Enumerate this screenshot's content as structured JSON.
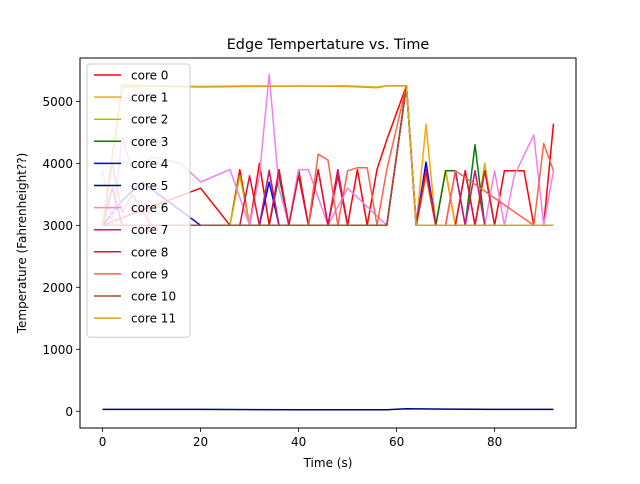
{
  "chart_data": {
    "type": "line",
    "title": "Edge Tempertature vs. Time",
    "xlabel": "Time (s)",
    "ylabel": "Temperature (Fahrenheight??)",
    "xlim": [
      -4.6,
      96.6
    ],
    "ylim": [
      -270,
      5700
    ],
    "xticks": [
      0,
      20,
      40,
      60,
      80
    ],
    "yticks": [
      0,
      1000,
      2000,
      3000,
      4000,
      5000
    ],
    "grid": false,
    "legend_position": "upper left",
    "series": [
      {
        "name": "core 0",
        "color": "#ff0000",
        "x": [
          0,
          10,
          20,
          26,
          28,
          30,
          32,
          34,
          36,
          38,
          40,
          42,
          44,
          46,
          48,
          50,
          52,
          54,
          56,
          58,
          62,
          64,
          66,
          68,
          70,
          72,
          74,
          76,
          78,
          80,
          82,
          84,
          86,
          88,
          90,
          92
        ],
        "y": [
          3000,
          3300,
          3600,
          3000,
          3900,
          3000,
          4000,
          3000,
          3900,
          3000,
          3900,
          3000,
          3900,
          3000,
          3900,
          3000,
          3900,
          3000,
          3900,
          4380,
          5250,
          3000,
          3800,
          3000,
          3880,
          3000,
          3880,
          3000,
          3880,
          3000,
          3880,
          3880,
          3880,
          3000,
          3000,
          4640
        ]
      },
      {
        "name": "core 1",
        "color": "#ffa500",
        "x": [
          0,
          4,
          10,
          20,
          30,
          40,
          50,
          56,
          58,
          62,
          64,
          66,
          68,
          70,
          72,
          74,
          76,
          78,
          80,
          82,
          84,
          86,
          88,
          90,
          92
        ],
        "y": [
          3000,
          5220,
          5250,
          5230,
          5240,
          5250,
          5240,
          5220,
          5250,
          5250,
          3000,
          4630,
          3000,
          3880,
          3000,
          3000,
          3000,
          3000,
          3000,
          3000,
          3000,
          3000,
          3000,
          3000,
          3000
        ]
      },
      {
        "name": "core 2",
        "color": "#bdbd00",
        "x": [
          0,
          4,
          10,
          20,
          26,
          28,
          30,
          32,
          34,
          36,
          38,
          40,
          46,
          58,
          62,
          64,
          66,
          68,
          70,
          72,
          74,
          76,
          78,
          80,
          86,
          92
        ],
        "y": [
          3000,
          3000,
          3000,
          3000,
          3000,
          3800,
          3000,
          3000,
          3900,
          3000,
          3000,
          3000,
          3000,
          3000,
          5250,
          3000,
          3800,
          3000,
          3000,
          3000,
          3000,
          3000,
          4000,
          3000,
          3000,
          3000
        ]
      },
      {
        "name": "core 3",
        "color": "#008000",
        "x": [
          0,
          20,
          30,
          32,
          34,
          36,
          38,
          40,
          58,
          62,
          64,
          66,
          68,
          70,
          72,
          74,
          76,
          78,
          80,
          92
        ],
        "y": [
          3000,
          3000,
          3000,
          3000,
          3000,
          3800,
          3000,
          3000,
          3000,
          5250,
          3000,
          3900,
          3000,
          3880,
          3880,
          3000,
          4300,
          3000,
          3000,
          3000
        ]
      },
      {
        "name": "core 4",
        "color": "#0000ff",
        "x": [
          0,
          4,
          8,
          20,
          30,
          32,
          34,
          36,
          38,
          58,
          62,
          64,
          66,
          68,
          92
        ],
        "y": [
          3000,
          3400,
          3700,
          3000,
          3000,
          3000,
          3700,
          3000,
          3000,
          3000,
          5250,
          3000,
          4020,
          3000,
          3000
        ]
      },
      {
        "name": "core 5",
        "color": "#000080",
        "x": [
          0,
          20,
          40,
          58,
          62,
          70,
          80,
          92
        ],
        "y": [
          30,
          30,
          25,
          25,
          40,
          35,
          30,
          30
        ]
      },
      {
        "name": "core 6",
        "color": "#ee82ee",
        "x": [
          0,
          2,
          4,
          6,
          10,
          16,
          20,
          26,
          30,
          32,
          34,
          36,
          38,
          40,
          42,
          46,
          50,
          54,
          58,
          62,
          64,
          66,
          68,
          74,
          76,
          78,
          80,
          82,
          84,
          88,
          90,
          92
        ],
        "y": [
          3900,
          3000,
          4400,
          3900,
          4100,
          4000,
          3700,
          3900,
          3000,
          3800,
          5440,
          3600,
          3000,
          3900,
          3900,
          3000,
          3600,
          3300,
          3000,
          5250,
          3000,
          3880,
          3000,
          3000,
          3880,
          3000,
          3880,
          3000,
          3800,
          4460,
          3000,
          3880
        ]
      },
      {
        "name": "core 7",
        "color": "#c71585",
        "x": [
          0,
          2,
          4,
          20,
          30,
          32,
          34,
          36,
          38,
          40,
          44,
          46,
          48,
          50,
          52,
          58,
          62,
          64,
          66,
          68,
          70,
          72,
          74,
          76,
          78,
          92
        ],
        "y": [
          3000,
          3600,
          3000,
          3000,
          3000,
          3000,
          3880,
          3000,
          3000,
          3000,
          3000,
          3000,
          3880,
          3000,
          3000,
          3000,
          5250,
          3000,
          3880,
          3000,
          3000,
          3880,
          3000,
          3880,
          3000,
          3000
        ]
      },
      {
        "name": "core 8",
        "color": "#dc143c",
        "x": [
          0,
          20,
          28,
          30,
          32,
          34,
          36,
          38,
          40,
          42,
          44,
          46,
          48,
          50,
          52,
          58,
          62,
          64,
          66,
          68,
          70,
          72,
          74,
          76,
          78,
          80,
          92
        ],
        "y": [
          3000,
          3000,
          3000,
          3800,
          3000,
          3000,
          3900,
          3000,
          3800,
          3000,
          3900,
          3000,
          3800,
          3000,
          3000,
          3000,
          5250,
          3000,
          3880,
          3000,
          3000,
          3000,
          3880,
          3000,
          3880,
          3000,
          3000
        ]
      },
      {
        "name": "core 9",
        "color": "#ff6347",
        "x": [
          0,
          2,
          4,
          6,
          10,
          20,
          28,
          30,
          34,
          38,
          42,
          44,
          46,
          48,
          50,
          52,
          54,
          56,
          58,
          62,
          64,
          66,
          68,
          70,
          72,
          88,
          90,
          92
        ],
        "y": [
          3000,
          4000,
          3200,
          3500,
          3000,
          3000,
          3000,
          3000,
          3000,
          3000,
          3000,
          4150,
          4050,
          3000,
          3880,
          3930,
          3930,
          3000,
          3900,
          5250,
          3000,
          3000,
          3000,
          3000,
          3880,
          3000,
          4320,
          3880
        ]
      },
      {
        "name": "core 10",
        "color": "#a0522d",
        "x": [
          0,
          20,
          40,
          58,
          62,
          64,
          92
        ],
        "y": [
          3000,
          3000,
          3000,
          3000,
          5250,
          3000,
          3000
        ]
      },
      {
        "name": "core 11",
        "color": "#daa520",
        "x": [
          0,
          4,
          20,
          30,
          40,
          50,
          56,
          58,
          62,
          64,
          92
        ],
        "y": [
          3000,
          5260,
          5240,
          5250,
          5245,
          5250,
          5230,
          5250,
          5250,
          3000,
          3000
        ]
      }
    ]
  }
}
